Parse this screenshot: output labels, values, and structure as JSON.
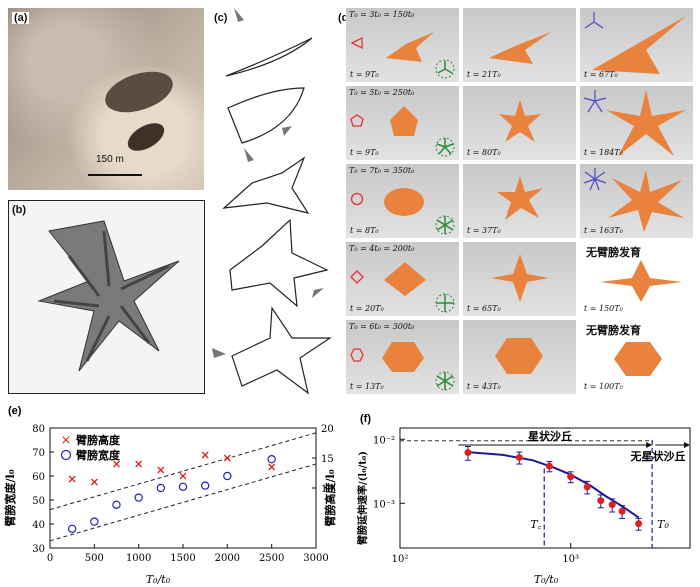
{
  "panel_labels": {
    "a": "(a)",
    "b": "(b)",
    "c": "(c)",
    "d": "(d)",
    "e": "(e)",
    "f": "(f)"
  },
  "panel_a": {
    "scale_bar": "150 m"
  },
  "panel_d": {
    "rows": [
      {
        "header": "T₀ = 3t₀ = 150t₀",
        "times": [
          "t = 9T₀",
          "t = 21T₀",
          "t = 67T₀"
        ],
        "no_arm": ""
      },
      {
        "header": "T₀ = 5t₀ = 250t₀",
        "times": [
          "t = 9T₀",
          "t = 80T₀",
          "t = 184T₀"
        ],
        "no_arm": ""
      },
      {
        "header": "T₀ = 7t₀ = 350t₀",
        "times": [
          "t = 8T₀",
          "t = 37T₀",
          "t = 163T₀"
        ],
        "no_arm": ""
      },
      {
        "header": "T₀ = 4t₀ = 200t₀",
        "times": [
          "t = 20T₀",
          "t = 65T₀",
          "t = 150T₀"
        ],
        "no_arm": "无臂膀发育"
      },
      {
        "header": "T₀ = 6t₀ = 300t₀",
        "times": [
          "t = 13T₀",
          "t = 43T₀",
          "t = 100T₀"
        ],
        "no_arm": "无臂膀发育"
      }
    ],
    "colors": {
      "dune": "#e8823d",
      "shape_outline": "#e83030",
      "wind_rose": "#2e8b3a",
      "arrows": "#4a4acc"
    }
  },
  "chart_data": [
    {
      "type": "scatter",
      "panel": "(e)",
      "xlabel": "T₀/t₀",
      "ylabel_left": "臂膀宽度/l₀",
      "ylabel_right": "臂膀高度/l₀",
      "xlim": [
        0,
        3000
      ],
      "ylim_left": [
        30,
        80
      ],
      "ylim_right": [
        0,
        20
      ],
      "xticks": [
        "0",
        "500",
        "1000",
        "1500",
        "2000",
        "2500",
        "3000"
      ],
      "yticks_left": [
        "30",
        "40",
        "50",
        "60",
        "70",
        "80"
      ],
      "yticks_right": [
        "10",
        "15",
        "20"
      ],
      "legend": [
        "臂膀高度",
        "臂膀宽度"
      ],
      "series": [
        {
          "name": "臂膀高度",
          "marker": "x",
          "color": "#e02020",
          "x": [
            250,
            500,
            750,
            1000,
            1250,
            1500,
            1750,
            2000,
            2500
          ],
          "y": [
            11.5,
            11,
            14,
            14,
            13,
            12,
            15.5,
            15,
            13.5
          ]
        },
        {
          "name": "臂膀宽度",
          "marker": "o",
          "color": "#2020c0",
          "x": [
            250,
            500,
            750,
            1000,
            1250,
            1500,
            1750,
            2000,
            2500
          ],
          "y": [
            38,
            41,
            48,
            51,
            55,
            55.5,
            56,
            60,
            67
          ]
        }
      ],
      "bounds": [
        {
          "x": [
            0,
            3000
          ],
          "y": [
            46,
            78
          ]
        },
        {
          "x": [
            0,
            3000
          ],
          "y": [
            33,
            65
          ]
        }
      ]
    },
    {
      "type": "line",
      "panel": "(f)",
      "xlabel": "T₀/t₀",
      "ylabel": "臂膀延伸速率/(l₀/t₀)",
      "xscale": "log",
      "yscale": "log",
      "xlim": [
        100,
        5000
      ],
      "ylim": [
        0.0002,
        0.015
      ],
      "xticks": [
        "10²",
        "10³"
      ],
      "yticks": [
        "10⁻²",
        "10⁻³"
      ],
      "region_left_label": "星状沙丘",
      "region_right_label": "无星状沙丘",
      "Tc_label": "T꜀",
      "T0_label": "T₀",
      "Tc_x": 700,
      "T0_x": 3000,
      "ref_y": 0.0095,
      "points": {
        "x": [
          250,
          500,
          750,
          1000,
          1250,
          1500,
          1750,
          2000,
          2500
        ],
        "y": [
          0.0062,
          0.0052,
          0.0038,
          0.0026,
          0.0018,
          0.0011,
          0.00095,
          0.00075,
          0.00048
        ],
        "err": [
          0.0015,
          0.0011,
          0.0007,
          0.0005,
          0.0004,
          0.00025,
          0.00022,
          0.00017,
          0.0001
        ]
      },
      "fit": {
        "x": [
          250,
          400,
          600,
          800,
          1000,
          1300,
          1600,
          2000,
          2500
        ],
        "y": [
          0.0063,
          0.0057,
          0.0047,
          0.0036,
          0.0028,
          0.0019,
          0.0013,
          0.0009,
          0.0006
        ]
      },
      "colors": {
        "fit": "#1a1a99",
        "points": "#dd2020",
        "markers": "#1a1a99"
      }
    }
  ]
}
